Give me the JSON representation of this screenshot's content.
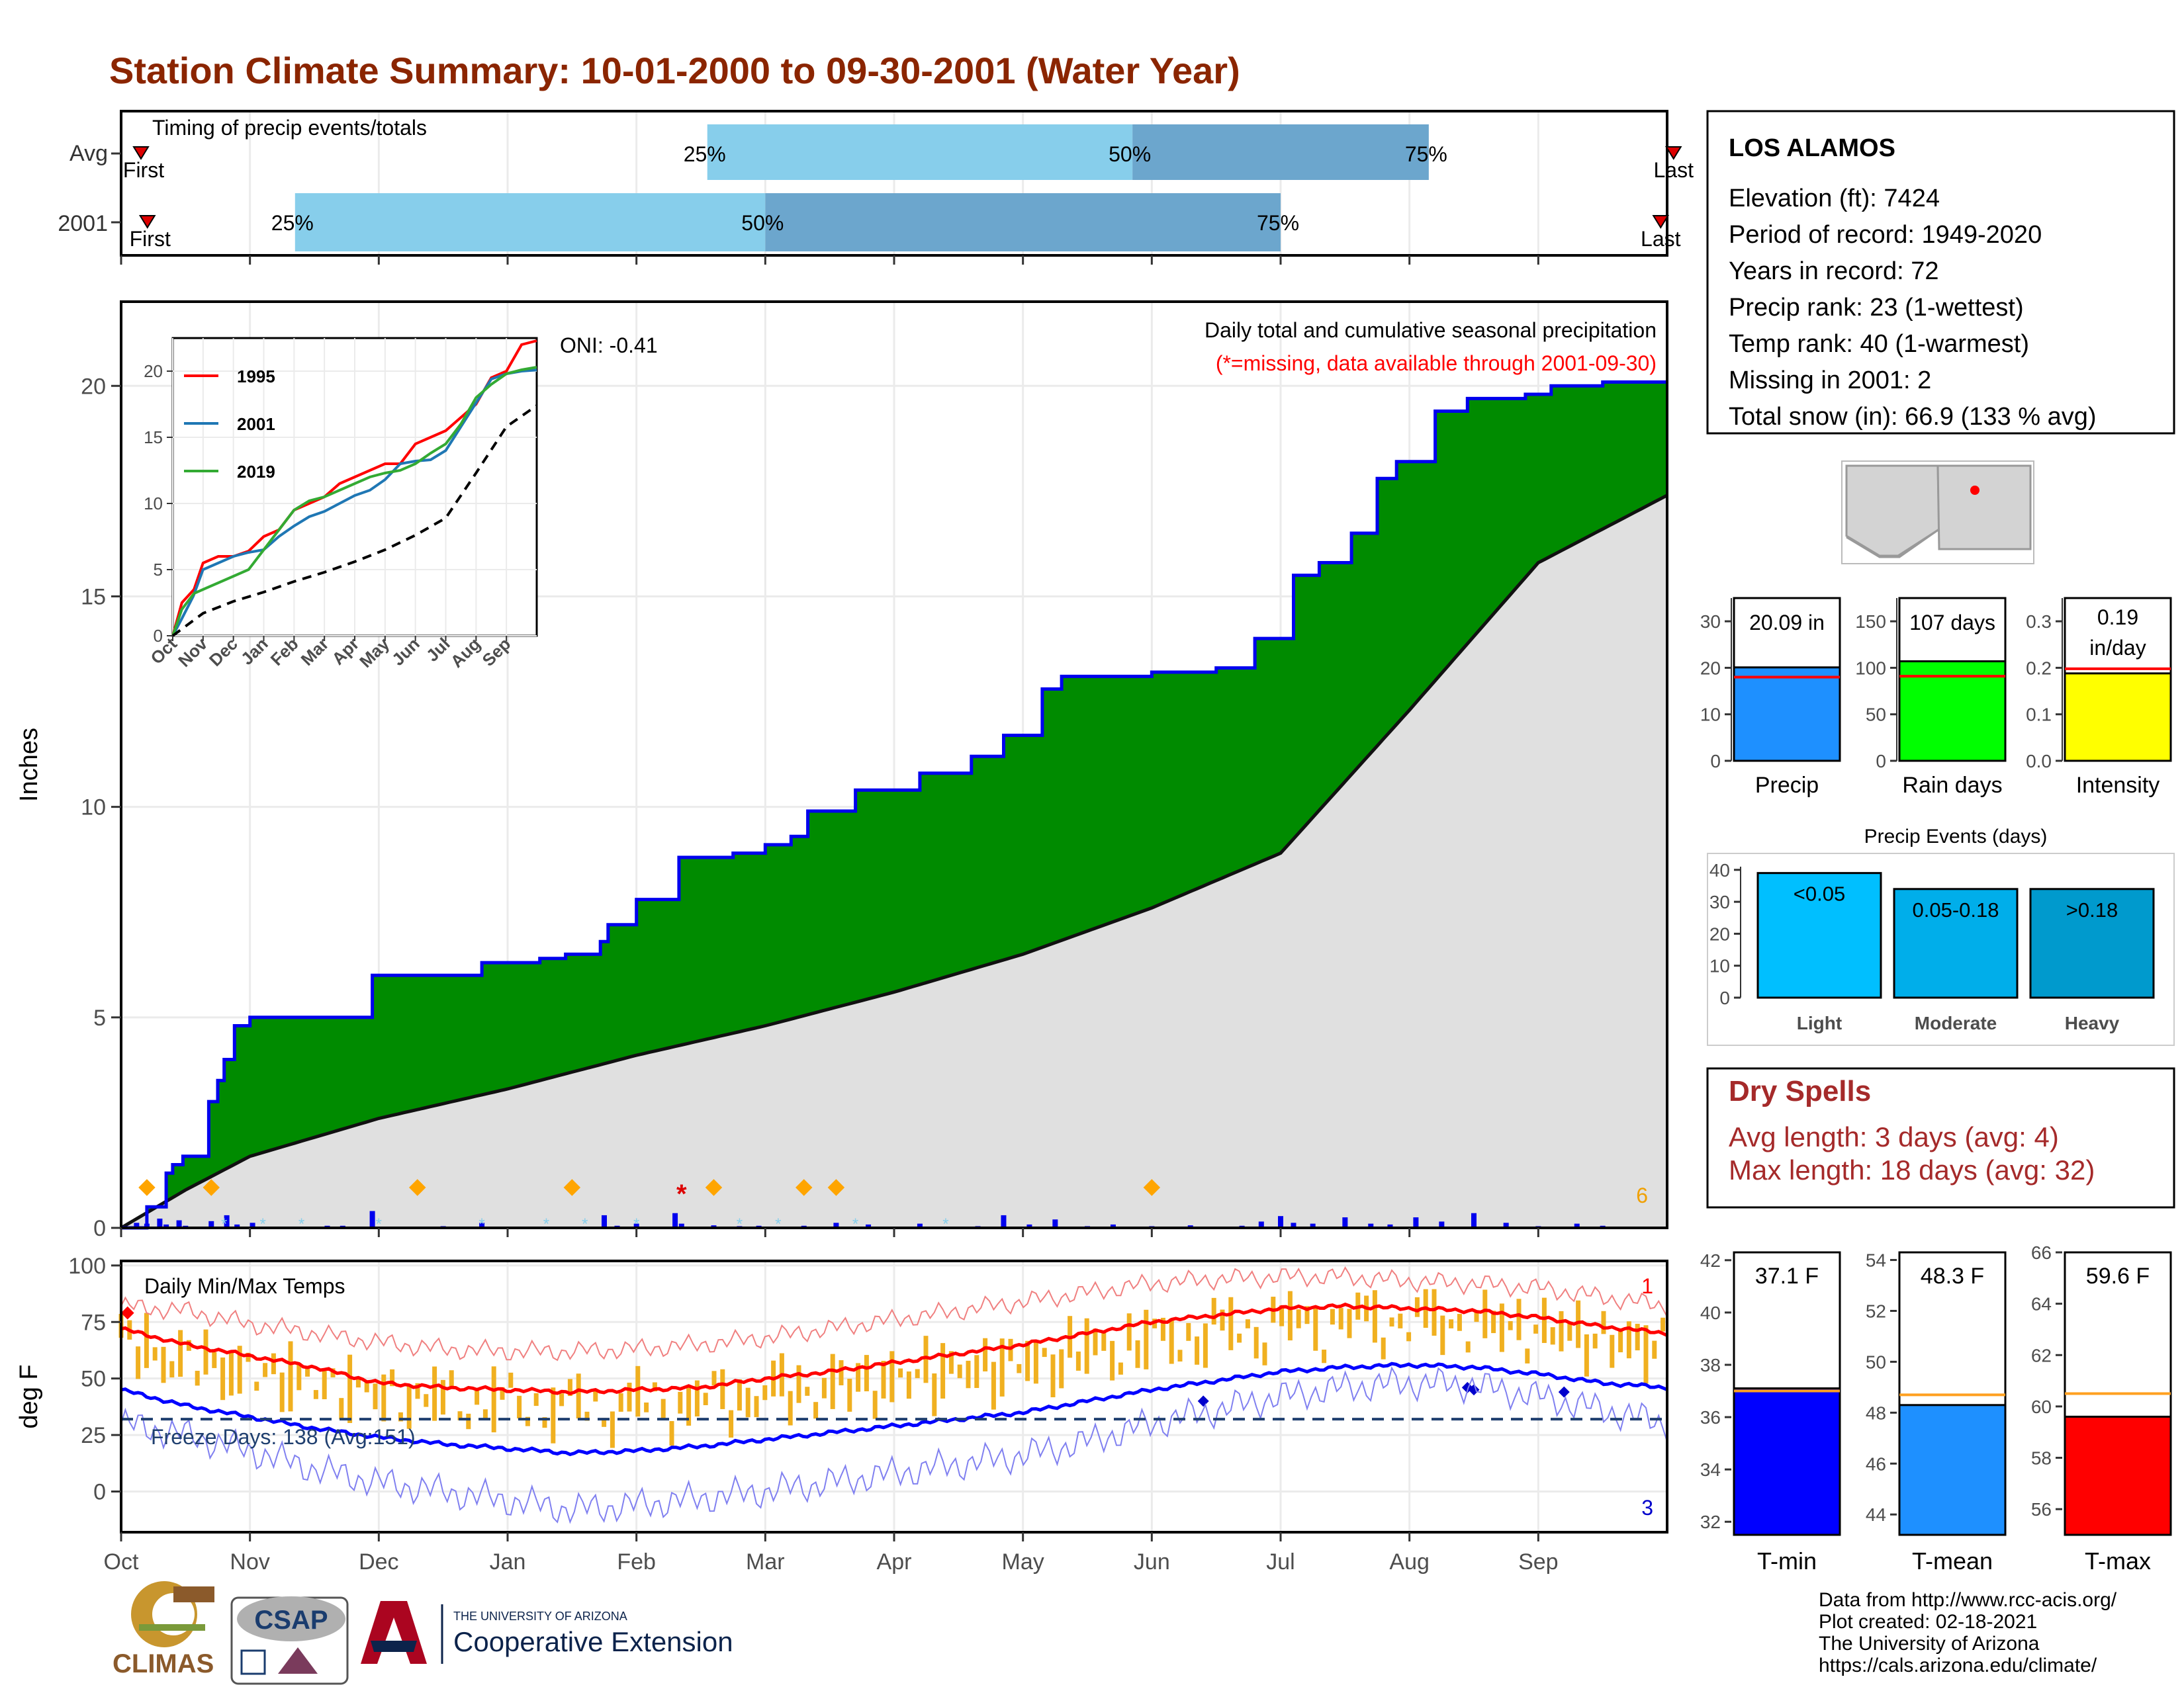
{
  "title": "Station Climate Summary: 10-01-2000 to 09-30-2001 (Water Year)",
  "colors": {
    "title": "#8B2500",
    "green": "#008B00",
    "gray_area": "#E0E0E0",
    "blue_line": "#0000FF",
    "light_blue_bar": "#87CEEB",
    "mid_blue_bar": "#6CA6CD",
    "orange": "#F0B020",
    "red": "#FF0000",
    "dry_spell_text": "#A52A2A"
  },
  "timing_panel": {
    "heading": "Timing of precip events/totals",
    "rows": [
      {
        "label": "Avg",
        "first_label": "First",
        "last_label": "Last",
        "p25_label": "25%",
        "p50_label": "50%",
        "p75_label": "75%",
        "first_x": 0.0,
        "p25_x": 4.55,
        "p50_x": 7.85,
        "p75_x": 10.15,
        "last_x": 12.05
      },
      {
        "label": "2001",
        "first_label": "First",
        "last_label": "Last",
        "p25_label": "25%",
        "p50_label": "50%",
        "p75_label": "75%",
        "first_x": 0.05,
        "p25_x": 1.35,
        "p50_x": 5.0,
        "p75_x": 9.0,
        "last_x": 11.95
      }
    ]
  },
  "precip_panel": {
    "ylabel": "Inches",
    "yticks": [
      "0",
      "5",
      "10",
      "15",
      "20"
    ],
    "ylim": [
      0,
      22
    ],
    "label_right_1": "Daily total and cumulative seasonal precipitation",
    "label_right_2": "(*=missing, data available through 2001-09-30)",
    "oni_label": "ONI: -0.41",
    "count_label": "6"
  },
  "inset": {
    "yticks": [
      "0",
      "5",
      "10",
      "15",
      "20"
    ],
    "xticks": [
      "Oct",
      "Nov",
      "Dec",
      "Jan",
      "Feb",
      "Mar",
      "Apr",
      "May",
      "Jun",
      "Jul",
      "Aug",
      "Sep"
    ],
    "legend": [
      {
        "name": "1995",
        "color": "#FF0000"
      },
      {
        "name": "2001",
        "color": "#1F77B4"
      },
      {
        "name": "2019",
        "color": "#33AA33"
      }
    ]
  },
  "temp_panel": {
    "ylabel": "deg F",
    "heading": "Daily Min/Max Temps",
    "yticks": [
      "0",
      "25",
      "50",
      "75",
      "100"
    ],
    "ylim": [
      -18,
      102
    ],
    "freeze_label": "Freeze Days: 138 (Avg:151)",
    "count_top": "1",
    "count_bottom": "3"
  },
  "months": [
    "Oct",
    "Nov",
    "Dec",
    "Jan",
    "Feb",
    "Mar",
    "Apr",
    "May",
    "Jun",
    "Jul",
    "Aug",
    "Sep"
  ],
  "station": {
    "name": "LOS ALAMOS",
    "lines": [
      "Elevation (ft): 7424",
      "Period of record: 1949-2020",
      "Years in record: 72",
      "Precip rank: 23 (1-wettest)",
      "Temp rank: 40 (1-warmest)",
      "Missing in 2001: 2",
      "Total snow (in): 66.9 (133 % avg)"
    ]
  },
  "mini_bars": [
    {
      "label": "Precip",
      "value_label": "20.09 in",
      "value": 20.09,
      "avg": 18.0,
      "ymax": 35,
      "yticks": [
        "0",
        "10",
        "20",
        "30"
      ],
      "tick_values": [
        0,
        10,
        20,
        30
      ],
      "color": "#1E90FF"
    },
    {
      "label": "Rain days",
      "value_label": "107 days",
      "value": 107,
      "avg": 91,
      "ymax": 175,
      "yticks": [
        "0",
        "50",
        "100",
        "150"
      ],
      "tick_values": [
        0,
        50,
        100,
        150
      ],
      "color": "#00FF00"
    },
    {
      "label": "Intensity",
      "value_label_1": "0.19",
      "value_label_2": "in/day",
      "value": 0.188,
      "avg": 0.198,
      "ymax": 0.35,
      "yticks": [
        "0.0",
        "0.1",
        "0.2",
        "0.3"
      ],
      "tick_values": [
        0,
        0.1,
        0.2,
        0.3
      ],
      "color": "#FFFF00"
    }
  ],
  "events": {
    "title": "Precip Events (days)",
    "yticks": [
      "0",
      "10",
      "20",
      "30",
      "40"
    ],
    "bars": [
      {
        "label": "Light",
        "range": "<0.05",
        "value": 39,
        "color": "#00BFFF"
      },
      {
        "label": "Moderate",
        "range": "0.05-0.18",
        "value": 34,
        "color": "#00AEEA"
      },
      {
        "label": "Heavy",
        "range": ">0.18",
        "value": 34,
        "color": "#009ACD"
      }
    ]
  },
  "dry_spells": {
    "title": "Dry Spells",
    "avg_line": "Avg length: 3 days (avg: 4)",
    "max_line": "Max length: 18 days (avg: 32)"
  },
  "temp_bars": [
    {
      "label": "T-min",
      "value_label": "37.1 F",
      "value": 37.1,
      "avg": 37.0,
      "ymin": 31.5,
      "ymax": 42.3,
      "yticks": [
        "32",
        "34",
        "36",
        "38",
        "40",
        "42"
      ],
      "tick_values": [
        32,
        34,
        36,
        38,
        40,
        42
      ],
      "color": "#0000FF"
    },
    {
      "label": "T-mean",
      "value_label": "48.3 F",
      "value": 48.3,
      "avg": 48.7,
      "ymin": 43.2,
      "ymax": 54.3,
      "yticks": [
        "44",
        "46",
        "48",
        "50",
        "52",
        "54"
      ],
      "tick_values": [
        44,
        46,
        48,
        50,
        52,
        54
      ],
      "color": "#1E90FF"
    },
    {
      "label": "T-max",
      "value_label": "59.6 F",
      "value": 59.6,
      "avg": 60.5,
      "ymin": 55.0,
      "ymax": 66.0,
      "yticks": [
        "56",
        "58",
        "60",
        "62",
        "64",
        "66"
      ],
      "tick_values": [
        56,
        58,
        60,
        62,
        64,
        66
      ],
      "color": "#FF0000"
    }
  ],
  "footer": {
    "lines": [
      "Data from http://www.rcc-acis.org/",
      "Plot created: 02-18-2021",
      "The University of Arizona",
      "https://cals.arizona.edu/climate/"
    ],
    "climas": "CLIMAS",
    "csap": "CSAP",
    "ua_small": "THE UNIVERSITY OF ARIZONA",
    "ua_big": "Cooperative Extension"
  },
  "chart_data": [
    {
      "type": "area",
      "title": "Daily total and cumulative seasonal precipitation",
      "ylabel": "Inches",
      "ylim": [
        0,
        22
      ],
      "x_unit": "months since Oct 1",
      "cumulative_2001": {
        "x": [
          0,
          0.2,
          0.35,
          0.4,
          0.48,
          0.68,
          0.75,
          0.8,
          0.88,
          1.0,
          1.1,
          1.4,
          1.95,
          2.35,
          2.8,
          3.25,
          3.45,
          3.72,
          3.78,
          4.0,
          4.33,
          4.6,
          4.75,
          5.0,
          5.2,
          5.33,
          5.7,
          6.2,
          6.6,
          6.85,
          7.15,
          7.3,
          8.0,
          8.5,
          8.8,
          9.1,
          9.3,
          9.55,
          9.75,
          9.9,
          10.2,
          10.45,
          10.9,
          11.1,
          11.5,
          12
        ],
        "y": [
          0,
          0.5,
          1.3,
          1.5,
          1.7,
          3.0,
          3.5,
          4.0,
          4.8,
          5.0,
          5.0,
          5.0,
          6.0,
          6.0,
          6.3,
          6.4,
          6.5,
          6.8,
          7.2,
          7.8,
          8.8,
          8.8,
          8.9,
          9.1,
          9.3,
          9.9,
          10.4,
          10.8,
          11.2,
          11.7,
          12.8,
          13.1,
          13.2,
          13.3,
          14.0,
          15.5,
          15.8,
          16.5,
          17.8,
          18.2,
          19.4,
          19.7,
          19.8,
          20.0,
          20.09,
          20.09
        ]
      },
      "average_cumulative": {
        "x": [
          0,
          0.5,
          1,
          2,
          3,
          4,
          5,
          6,
          7,
          8,
          9,
          10,
          11,
          12
        ],
        "y": [
          0,
          0.9,
          1.7,
          2.6,
          3.3,
          4.1,
          4.8,
          5.6,
          6.5,
          7.6,
          8.9,
          12.3,
          15.8,
          17.4
        ]
      },
      "daily_precip_events": {
        "x": [
          0.12,
          0.2,
          0.3,
          0.35,
          0.45,
          0.5,
          0.7,
          0.82,
          0.9,
          1.02,
          1.2,
          1.3,
          1.6,
          1.72,
          1.95,
          2.3,
          2.5,
          2.8,
          3.3,
          3.5,
          3.75,
          3.85,
          4.0,
          4.3,
          4.35,
          4.6,
          4.8,
          4.95,
          5.3,
          5.55,
          5.8,
          6.2,
          6.65,
          6.85,
          7.05,
          7.25,
          7.5,
          7.7,
          8.0,
          8.3,
          8.7,
          8.85,
          9.0,
          9.1,
          9.25,
          9.5,
          9.7,
          9.85,
          10.05,
          10.25,
          10.5,
          10.75,
          11.0,
          11.3,
          11.5
        ],
        "y": [
          0.12,
          0.1,
          0.22,
          0.08,
          0.18,
          0.05,
          0.16,
          0.3,
          0.08,
          0.12,
          0.02,
          0.03,
          0.05,
          0.05,
          0.4,
          0.02,
          0.04,
          0.12,
          0.02,
          0.03,
          0.3,
          0.05,
          0.1,
          0.35,
          0.1,
          0.06,
          0.04,
          0.05,
          0.05,
          0.12,
          0.08,
          0.1,
          0.04,
          0.3,
          0.08,
          0.2,
          0.04,
          0.08,
          0.04,
          0.06,
          0.05,
          0.15,
          0.28,
          0.12,
          0.1,
          0.25,
          0.1,
          0.08,
          0.25,
          0.15,
          0.35,
          0.12,
          0.04,
          0.1,
          0.05
        ]
      }
    },
    {
      "type": "line",
      "title": "",
      "xticks": [
        "Oct",
        "Nov",
        "Dec",
        "Jan",
        "Feb",
        "Mar",
        "Apr",
        "May",
        "Jun",
        "Jul",
        "Aug",
        "Sep"
      ],
      "yticks": [
        0,
        5,
        10,
        15,
        20
      ],
      "ylim": [
        0,
        22
      ],
      "series": [
        {
          "name": "1995",
          "x": [
            0,
            0.3,
            0.7,
            1.0,
            1.5,
            2.0,
            2.5,
            3.0,
            3.5,
            4.0,
            4.5,
            5.0,
            5.5,
            6.0,
            6.5,
            7.0,
            7.5,
            8.0,
            8.5,
            9.0,
            9.5,
            10.0,
            10.5,
            11.0,
            11.5,
            12
          ],
          "y": [
            0,
            2.5,
            3.5,
            5.5,
            6.0,
            6.0,
            6.4,
            7.5,
            8.0,
            9.5,
            10.0,
            10.5,
            11.5,
            12.0,
            12.5,
            13.0,
            13.0,
            14.5,
            15.0,
            15.5,
            16.5,
            17.5,
            19.5,
            20.0,
            22.0,
            22.3
          ]
        },
        {
          "name": "2001",
          "x": [
            0,
            0.3,
            0.68,
            1.0,
            1.5,
            2.0,
            2.5,
            3.0,
            3.5,
            4.0,
            4.5,
            5.0,
            5.5,
            6.0,
            6.5,
            7.0,
            7.5,
            8.0,
            8.5,
            9.0,
            9.5,
            10.0,
            10.5,
            11.0,
            11.5,
            12
          ],
          "y": [
            0,
            1.3,
            3.0,
            5.0,
            5.5,
            6.0,
            6.3,
            6.5,
            7.5,
            8.3,
            9.0,
            9.4,
            10.0,
            10.6,
            11.0,
            11.8,
            13.0,
            13.2,
            13.3,
            14.0,
            15.8,
            17.6,
            19.4,
            19.8,
            20.0,
            20.09
          ]
        },
        {
          "name": "2019",
          "x": [
            0,
            0.3,
            0.7,
            1.0,
            1.5,
            2.0,
            2.5,
            3.0,
            3.5,
            4.0,
            4.5,
            5.0,
            5.5,
            6.0,
            6.5,
            7.0,
            7.5,
            8.0,
            8.5,
            9.0,
            9.5,
            10.0,
            10.5,
            11.0,
            11.5,
            12
          ],
          "y": [
            0,
            2.0,
            3.2,
            3.5,
            4.0,
            4.5,
            5.0,
            6.5,
            8.0,
            9.5,
            10.2,
            10.5,
            11.0,
            11.5,
            12.0,
            12.3,
            12.5,
            13.0,
            13.8,
            14.5,
            16.0,
            18.0,
            19.0,
            19.8,
            20.1,
            20.3
          ]
        },
        {
          "name": "",
          "x": [
            0,
            1,
            2,
            3,
            4,
            5,
            6,
            7,
            8,
            9,
            10,
            11,
            12
          ],
          "y": [
            0,
            1.7,
            2.6,
            3.3,
            4.1,
            4.8,
            5.6,
            6.5,
            7.6,
            8.9,
            12.3,
            15.8,
            17.4
          ]
        }
      ]
    },
    {
      "type": "line",
      "title": "Daily Min/Max Temps",
      "ylabel": "deg F",
      "ylim": [
        -18,
        102
      ],
      "xticks": [
        "Oct",
        "Nov",
        "Dec",
        "Jan",
        "Feb",
        "Mar",
        "Apr",
        "May",
        "Jun",
        "Jul",
        "Aug",
        "Sep"
      ],
      "series": [
        {
          "name": "",
          "x": [
            0,
            0.5,
            1,
            1.5,
            2,
            2.5,
            3,
            3.5,
            4,
            4.5,
            5,
            5.5,
            6,
            6.5,
            7,
            7.5,
            8,
            8.5,
            9,
            9.5,
            10,
            10.5,
            11,
            11.5,
            12
          ],
          "y": [
            72,
            65,
            60,
            55,
            48,
            46,
            45,
            44,
            45,
            46,
            50,
            53,
            57,
            61,
            65,
            70,
            75,
            78,
            81,
            82,
            81,
            80,
            77,
            73,
            70
          ]
        },
        {
          "name": "",
          "x": [
            0,
            0.5,
            1,
            1.5,
            2,
            2.5,
            3,
            3.5,
            4,
            4.5,
            5,
            5.5,
            6,
            6.5,
            7,
            7.5,
            8,
            8.5,
            9,
            9.5,
            10,
            10.5,
            11,
            11.5,
            12
          ],
          "y": [
            45,
            38,
            33,
            28,
            24,
            21,
            19,
            17,
            18,
            20,
            23,
            26,
            29,
            32,
            35,
            40,
            45,
            49,
            53,
            55,
            56,
            55,
            52,
            48,
            46
          ]
        },
        {
          "name": "",
          "x": [
            0,
            0.5,
            1,
            1.5,
            2,
            2.5,
            3,
            3.5,
            4,
            4.5,
            5,
            5.5,
            6,
            6.5,
            7,
            7.5,
            8,
            8.5,
            9,
            9.5,
            10,
            10.5,
            11,
            11.5,
            12
          ],
          "y": [
            82,
            80,
            74,
            70,
            66,
            63,
            62,
            62,
            63,
            65,
            68,
            72,
            76,
            80,
            84,
            88,
            92,
            94,
            95,
            95,
            93,
            92,
            90,
            86,
            82
          ]
        },
        {
          "name": "",
          "x": [
            0,
            0.5,
            1,
            1.5,
            2,
            2.5,
            3,
            3.5,
            4,
            4.5,
            5,
            5.5,
            6,
            6.5,
            7,
            7.5,
            8,
            8.5,
            9,
            9.5,
            10,
            10.5,
            11,
            11.5,
            12
          ],
          "y": [
            30,
            25,
            18,
            10,
            4,
            0,
            -4,
            -8,
            -6,
            -3,
            0,
            4,
            8,
            12,
            16,
            22,
            30,
            36,
            42,
            46,
            48,
            47,
            42,
            36,
            30
          ]
        }
      ],
      "freeze_threshold": 32
    }
  ]
}
